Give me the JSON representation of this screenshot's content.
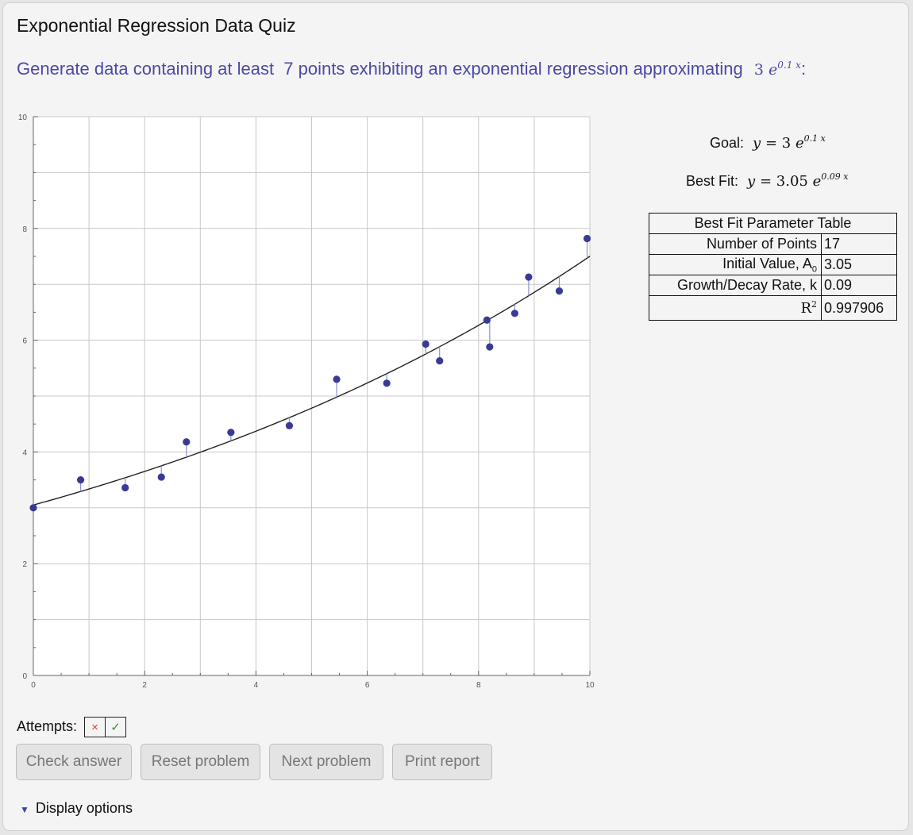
{
  "title": "Exponential Regression Data Quiz",
  "prompt": {
    "text": "Generate data containing at least",
    "count": "7",
    "text2": "points exhibiting an exponential regression approximating",
    "coef": "3",
    "base": "e",
    "exponent": "0.1 x",
    "trailing": ":"
  },
  "goal": {
    "label": "Goal:",
    "lhs": "y",
    "eq": "=",
    "coef": "3",
    "base": "e",
    "exponent": "0.1 x"
  },
  "best_fit": {
    "label": "Best Fit:",
    "lhs": "y",
    "eq": "=",
    "coef": "3.05",
    "base": "e",
    "exponent": "0.09 x"
  },
  "parameter_table": {
    "header": "Best Fit Parameter Table",
    "rows": [
      {
        "label": "Number of Points",
        "value": "17"
      },
      {
        "label": "Initial Value, A",
        "sub": "0",
        "value": "3.05"
      },
      {
        "label": "Growth/Decay Rate, k",
        "value": "0.09"
      },
      {
        "label": "R",
        "sup": "2",
        "value": "0.997906"
      }
    ]
  },
  "attempts": {
    "label": "Attempts:",
    "marks": [
      "×",
      "✓"
    ]
  },
  "buttons": [
    "Check answer",
    "Reset problem",
    "Next problem",
    "Print report"
  ],
  "display_options": "Display options",
  "colors": {
    "prompt": "#4b49a6",
    "points": "#3a3a96",
    "residuals": "#8f8fd6",
    "curve": "#222222"
  },
  "chart_data": {
    "type": "scatter",
    "xlim": [
      0,
      10
    ],
    "ylim": [
      0,
      10
    ],
    "x_ticks": [
      "0",
      "2",
      "4",
      "6",
      "8",
      "10"
    ],
    "y_ticks": [
      "0",
      "2",
      "4",
      "6",
      "8",
      "10"
    ],
    "grid": true,
    "points": [
      {
        "x": 0.0,
        "y": 3.0
      },
      {
        "x": 0.85,
        "y": 3.5
      },
      {
        "x": 1.65,
        "y": 3.36
      },
      {
        "x": 2.3,
        "y": 3.55
      },
      {
        "x": 2.75,
        "y": 4.18
      },
      {
        "x": 3.55,
        "y": 4.35
      },
      {
        "x": 4.6,
        "y": 4.47
      },
      {
        "x": 5.45,
        "y": 5.3
      },
      {
        "x": 6.35,
        "y": 5.23
      },
      {
        "x": 7.05,
        "y": 5.93
      },
      {
        "x": 7.3,
        "y": 5.63
      },
      {
        "x": 8.15,
        "y": 6.36
      },
      {
        "x": 8.2,
        "y": 5.88
      },
      {
        "x": 8.65,
        "y": 6.48
      },
      {
        "x": 8.9,
        "y": 7.13
      },
      {
        "x": 9.45,
        "y": 6.88
      },
      {
        "x": 9.95,
        "y": 7.82
      }
    ],
    "fit": {
      "A": 3.05,
      "k": 0.09
    }
  }
}
